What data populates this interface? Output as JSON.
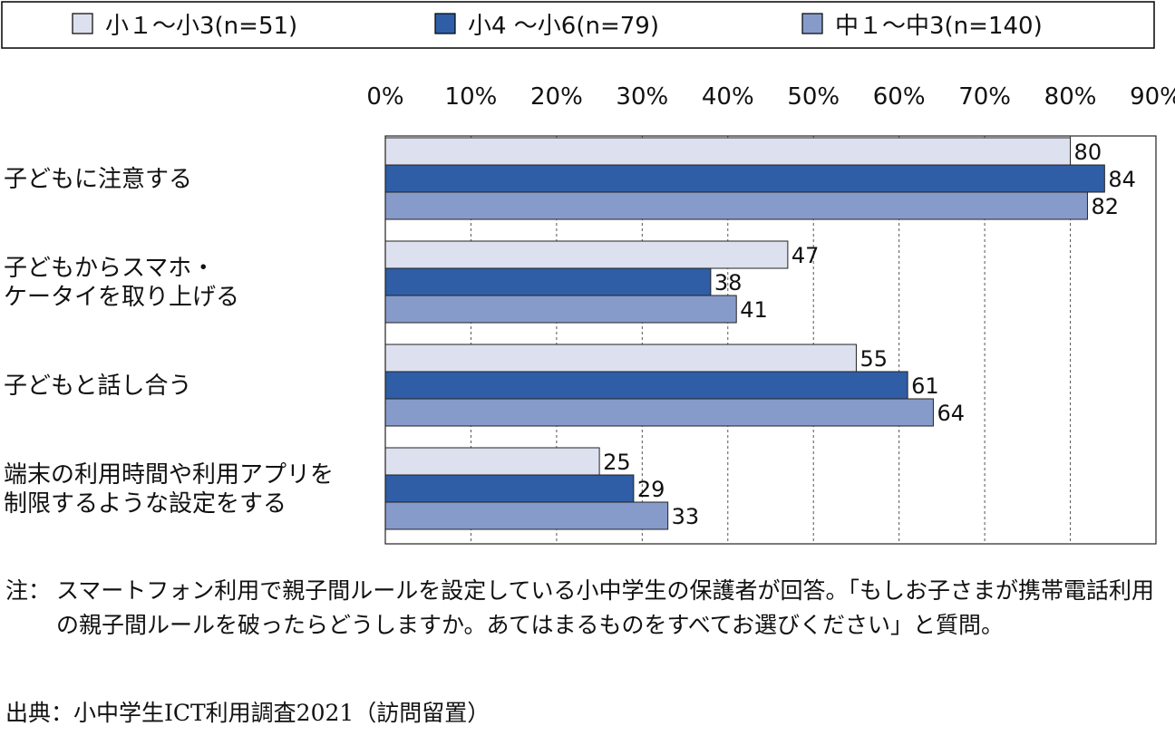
{
  "chart_data": {
    "type": "bar",
    "orientation": "horizontal",
    "categories": [
      [
        "子どもに注意する"
      ],
      [
        "子どもからスマホ・",
        "ケータイを取り上げる"
      ],
      [
        "子どもと話し合う"
      ],
      [
        "端末の利用時間や利用アプリを",
        "制限するような設定をする"
      ]
    ],
    "series": [
      {
        "name": "小１～小3(n=51)",
        "color": "#dde0ee",
        "values": [
          80,
          47,
          55,
          25
        ]
      },
      {
        "name": "小4 ～小6(n=79)",
        "color": "#2f5ea6",
        "values": [
          84,
          38,
          61,
          29
        ]
      },
      {
        "name": "中１～中3(n=140)",
        "color": "#879bcb",
        "values": [
          82,
          41,
          64,
          33
        ]
      }
    ],
    "x_ticks": [
      "0%",
      "10%",
      "20%",
      "30%",
      "40%",
      "50%",
      "60%",
      "70%",
      "80%",
      "90%"
    ],
    "xlim": [
      0,
      90
    ],
    "grid": "vertical-dashed",
    "legend_position": "top"
  },
  "note": {
    "prefix": "注：",
    "text": "スマートフォン利用で親子間ルールを設定している小中学生の保護者が回答。「もしお子さまが携帯電話利用の親子間ルールを破ったらどうしますか。あてはまるものをすべてお選びください」と質問。"
  },
  "source": "出典：小中学生ICT利用調査2021（訪問留置）"
}
